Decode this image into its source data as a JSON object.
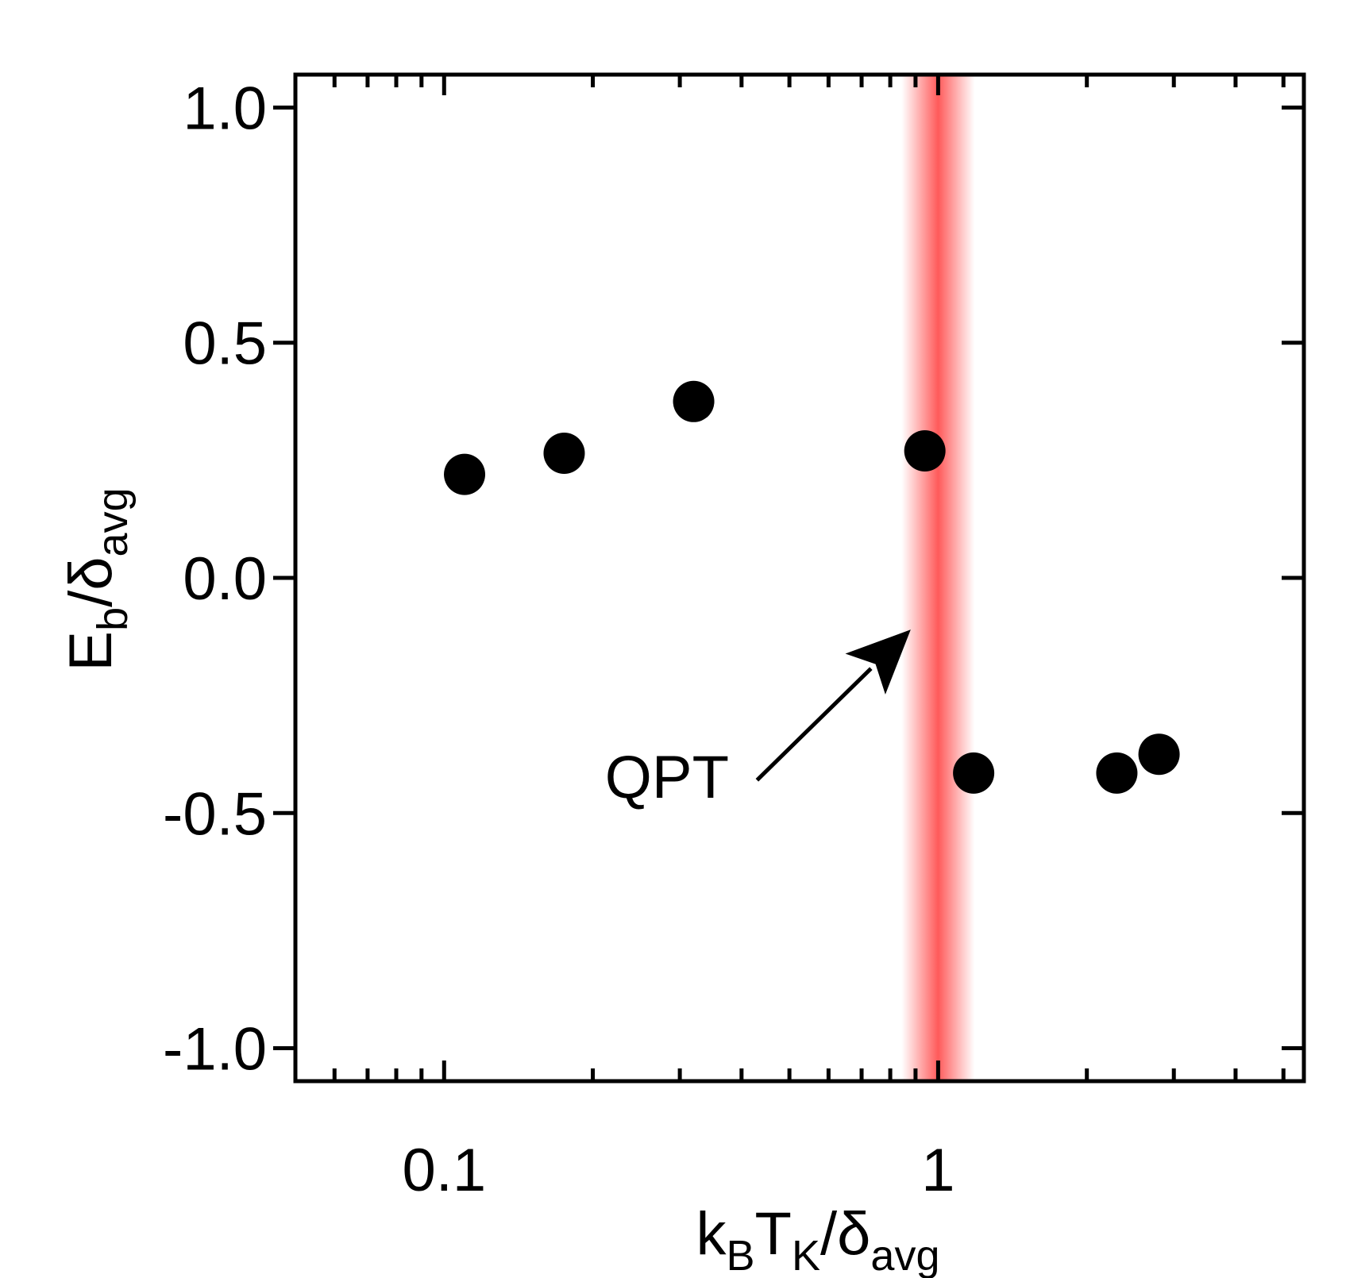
{
  "chart_data": {
    "type": "scatter",
    "title": "",
    "x_scale": "log",
    "xlim": [
      0.05,
      5.5
    ],
    "ylim": [
      -1.07,
      1.07
    ],
    "x_ticks": [
      {
        "value": 0.1,
        "label": "0.1"
      },
      {
        "value": 1,
        "label": "1"
      }
    ],
    "y_ticks": [
      {
        "value": 1.0,
        "label": "1.0"
      },
      {
        "value": 0.5,
        "label": "0.5"
      },
      {
        "value": 0.0,
        "label": "0.0"
      },
      {
        "value": -0.5,
        "label": "-0.5"
      },
      {
        "value": -1.0,
        "label": "-1.0"
      }
    ],
    "xlabel": {
      "base1": "k",
      "sub1": "B",
      "base2": "T",
      "sub2": "K",
      "base3": "/δ",
      "sub3": "avg"
    },
    "ylabel": {
      "base1": "E",
      "sub1": "b",
      "base2": "/δ",
      "sub2": "avg"
    },
    "series": [
      {
        "name": "E_b",
        "x": [
          0.11,
          0.175,
          0.32,
          0.94,
          1.18,
          2.3,
          2.8
        ],
        "y": [
          0.22,
          0.265,
          0.375,
          0.27,
          -0.415,
          -0.415,
          -0.375
        ]
      }
    ],
    "band": {
      "x_center": 1.0,
      "label": "QPT",
      "color": "#ff5a5a"
    },
    "annotation": {
      "text": "QPT",
      "arrow_tip": {
        "x": 0.88,
        "y": -0.11
      },
      "arrow_tail": {
        "x": 0.43,
        "y": -0.43
      }
    },
    "grid": false,
    "legend": "none",
    "colors": {
      "marker": "#000000",
      "band": "#ff5a5a",
      "axis": "#000000"
    }
  }
}
